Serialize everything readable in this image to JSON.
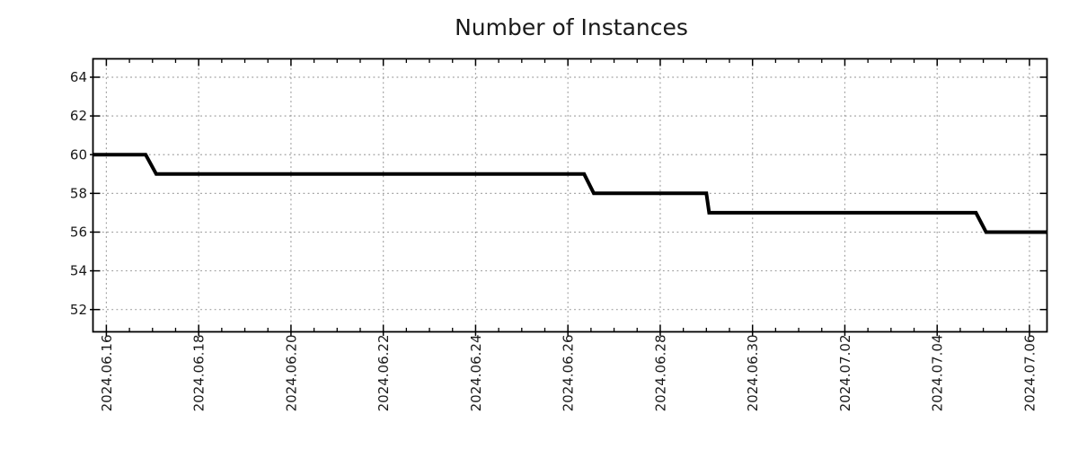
{
  "page": {
    "background_color": "#ffffff",
    "accent_color": "#000000"
  },
  "chart_data": {
    "type": "line",
    "subtype": "step",
    "title": "Number of Instances",
    "legend": "none",
    "grid": {
      "visible": true,
      "style": "dotted",
      "color": "#a0a0a0"
    },
    "line_color": "#000000",
    "line_width": 4,
    "x_axis": {
      "label": "",
      "unit": "days since 2024.06.16",
      "range": [
        -0.29,
        20.38
      ],
      "minor_tick_step": 0.5,
      "major_ticks": [
        {
          "t": 0,
          "label": "2024.06.16"
        },
        {
          "t": 2,
          "label": "2024.06.18"
        },
        {
          "t": 4,
          "label": "2024.06.20"
        },
        {
          "t": 6,
          "label": "2024.06.22"
        },
        {
          "t": 8,
          "label": "2024.06.24"
        },
        {
          "t": 10,
          "label": "2024.06.26"
        },
        {
          "t": 12,
          "label": "2024.06.28"
        },
        {
          "t": 14,
          "label": "2024.06.30"
        },
        {
          "t": 16,
          "label": "2024.07.02"
        },
        {
          "t": 18,
          "label": "2024.07.04"
        },
        {
          "t": 20,
          "label": "2024.07.06"
        }
      ]
    },
    "y_axis": {
      "label": "",
      "range": [
        50.85,
        64.95
      ],
      "major_ticks": [
        52,
        54,
        56,
        58,
        60,
        62,
        64
      ]
    },
    "series": [
      {
        "name": "Number of Instances",
        "color": "#000000",
        "points": [
          [
            -0.29,
            60
          ],
          [
            0.85,
            60
          ],
          [
            1.08,
            59
          ],
          [
            10.35,
            59
          ],
          [
            10.56,
            58
          ],
          [
            13.0,
            58
          ],
          [
            13.06,
            57
          ],
          [
            18.84,
            57
          ],
          [
            19.06,
            56
          ],
          [
            20.38,
            56
          ]
        ]
      }
    ],
    "steps_summary": [
      {
        "value": 60,
        "until": "2024.06.17"
      },
      {
        "value": 59,
        "until": "2024.06.26 ~12:00"
      },
      {
        "value": 58,
        "until": "2024.06.29"
      },
      {
        "value": 57,
        "until": "2024.07.05"
      },
      {
        "value": 56,
        "until": "end of range (past 2024.07.06)"
      }
    ]
  }
}
